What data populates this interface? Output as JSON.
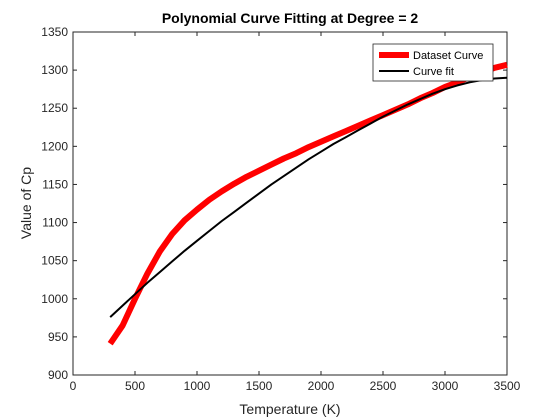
{
  "chart_data": {
    "type": "line",
    "title": "Polynomial Curve Fitting at Degree = 2",
    "xlabel": "Temperature (K)",
    "ylabel": "Value of Cp",
    "xlim": [
      0,
      3500
    ],
    "ylim": [
      900,
      1350
    ],
    "xticks": [
      0,
      500,
      1000,
      1500,
      2000,
      2500,
      3000,
      3500
    ],
    "yticks": [
      900,
      950,
      1000,
      1050,
      1100,
      1150,
      1200,
      1250,
      1300,
      1350
    ],
    "grid": false,
    "legend_position": "top-right",
    "series": [
      {
        "name": "Dataset Curve",
        "color": "#ff0000",
        "style": "thick",
        "x": [
          300,
          400,
          500,
          600,
          700,
          800,
          900,
          1000,
          1100,
          1200,
          1300,
          1400,
          1500,
          1600,
          1700,
          1800,
          1900,
          2000,
          2100,
          2200,
          2300,
          2400,
          2500,
          2600,
          2700,
          2800,
          2900,
          3000,
          3100,
          3200,
          3300,
          3400,
          3500
        ],
        "y": [
          941,
          965,
          1000,
          1033,
          1062,
          1085,
          1103,
          1117,
          1130,
          1141,
          1151,
          1160,
          1168,
          1176,
          1184,
          1191,
          1199,
          1206,
          1213,
          1220,
          1227,
          1234,
          1241,
          1248,
          1255,
          1263,
          1270,
          1278,
          1284,
          1291,
          1297,
          1303,
          1307
        ]
      },
      {
        "name": "Curve fit",
        "color": "#000000",
        "style": "thin",
        "x": [
          300,
          400,
          500,
          600,
          700,
          800,
          900,
          1000,
          1100,
          1200,
          1300,
          1400,
          1500,
          1600,
          1700,
          1800,
          1900,
          2000,
          2100,
          2200,
          2300,
          2400,
          2500,
          2600,
          2700,
          2800,
          2900,
          3000,
          3100,
          3200,
          3300,
          3400,
          3500
        ],
        "y": [
          976,
          991,
          1006,
          1021,
          1035,
          1049,
          1063,
          1076,
          1089,
          1102,
          1114,
          1126,
          1138,
          1150,
          1161,
          1172,
          1183,
          1193,
          1203,
          1212,
          1221,
          1230,
          1239,
          1247,
          1255,
          1262,
          1269,
          1275,
          1280,
          1284,
          1287,
          1289,
          1290
        ]
      }
    ]
  }
}
